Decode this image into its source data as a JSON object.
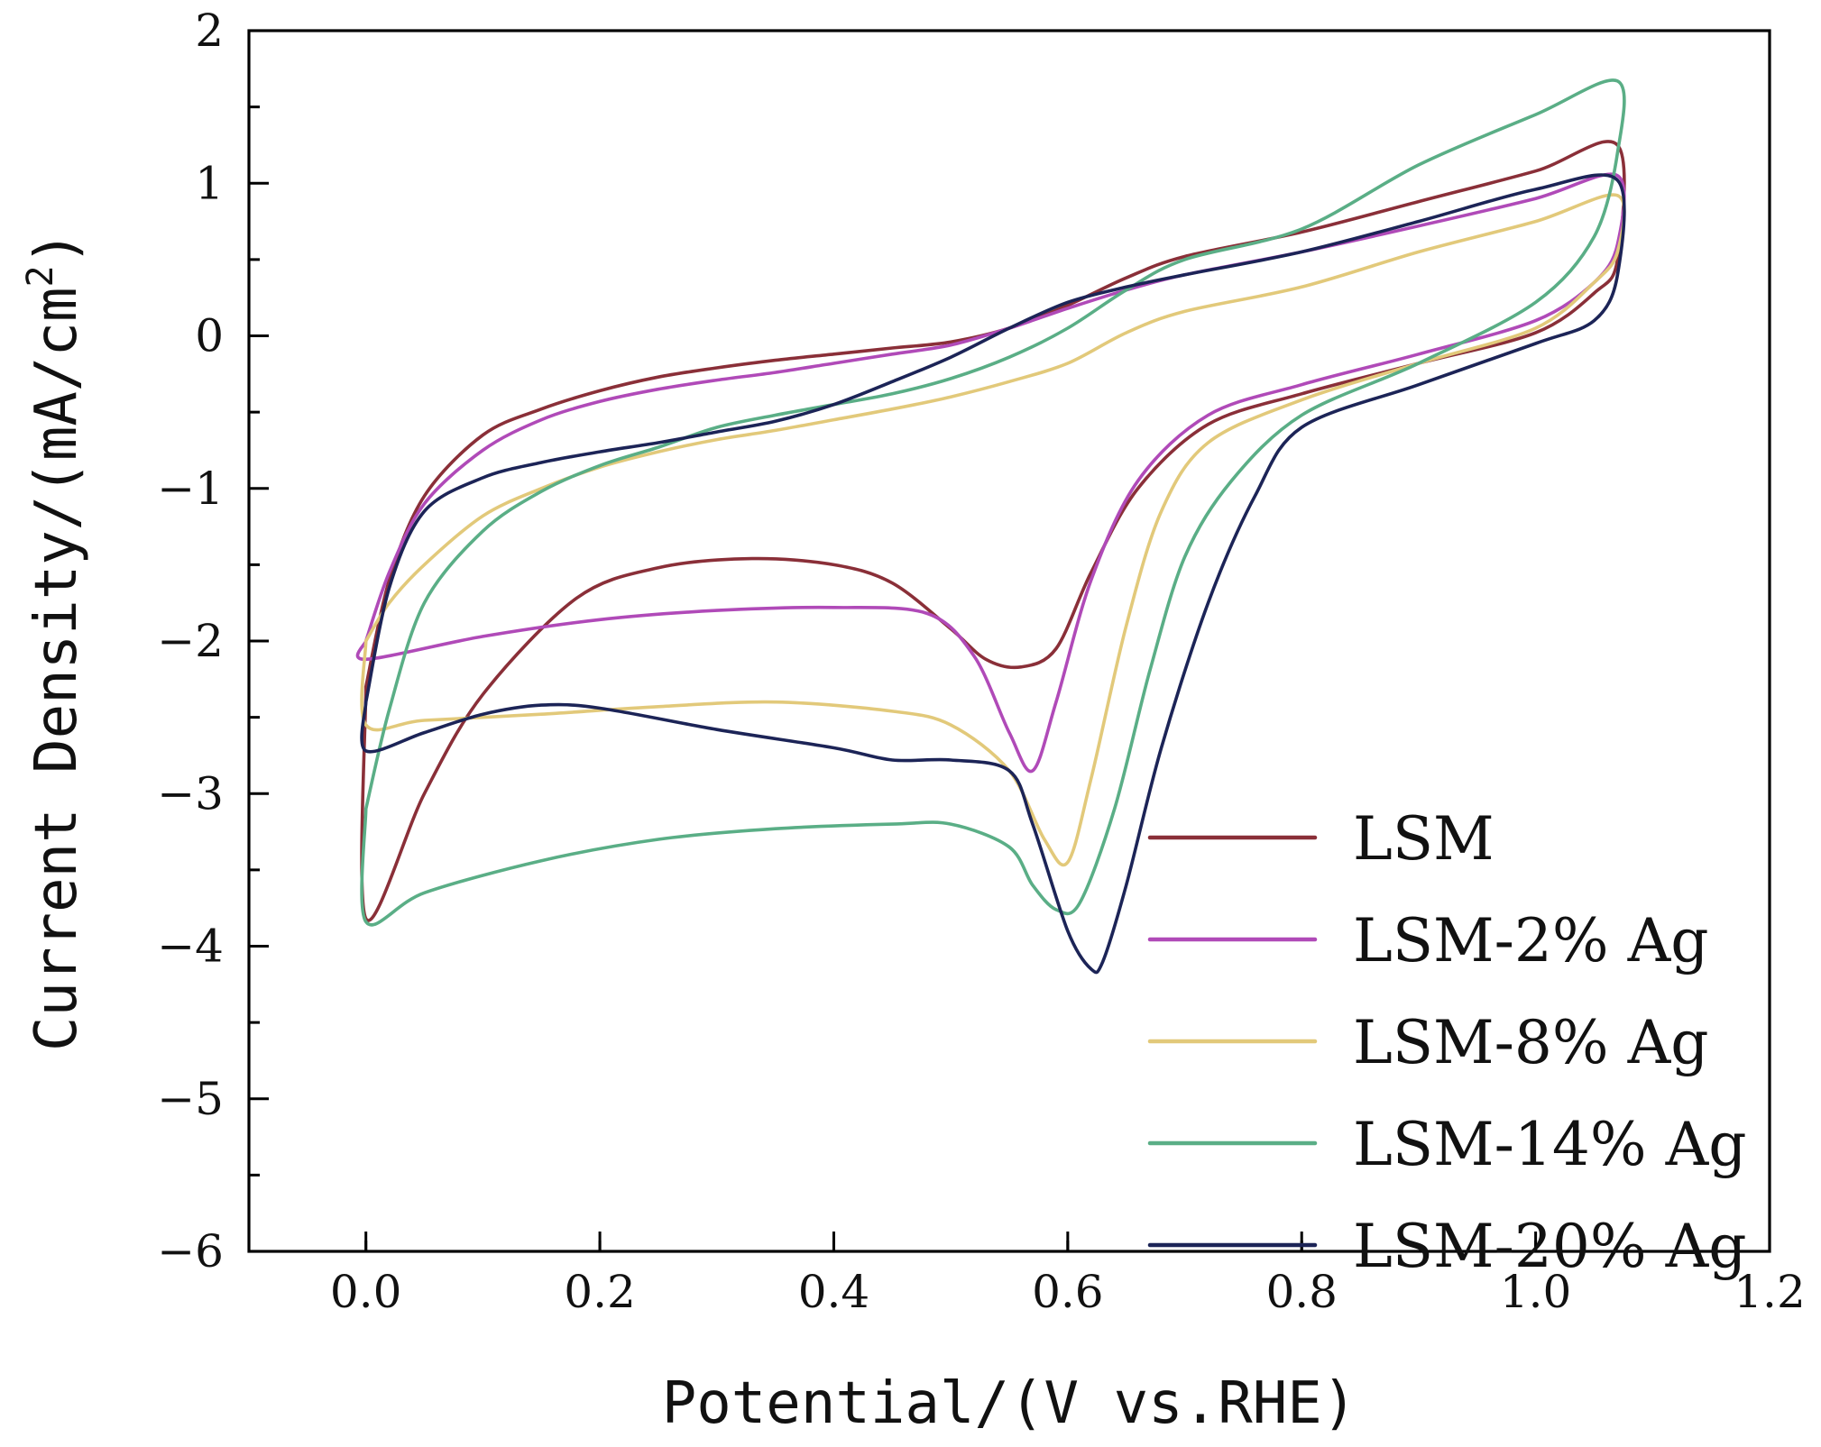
{
  "chart_data": {
    "type": "line",
    "title": "",
    "xlabel": "Potential/(V vs.RHE)",
    "ylabel_main": "Current Density/(mA/cm",
    "ylabel_sup": "2",
    "ylabel_close": ")",
    "xlim": [
      -0.1,
      1.2
    ],
    "ylim": [
      -6,
      2
    ],
    "x_ticks": [
      0.0,
      0.2,
      0.4,
      0.6,
      0.8,
      1.0,
      1.2
    ],
    "x_tick_labels": [
      "0.0",
      "0.2",
      "0.4",
      "0.6",
      "0.8",
      "1.0",
      "1.2"
    ],
    "y_ticks": [
      -6,
      -5,
      -4,
      -3,
      -2,
      -1,
      0,
      1,
      2
    ],
    "y_tick_labels": [
      "−6",
      "−5",
      "−4",
      "−3",
      "−2",
      "−1",
      "0",
      "1",
      "2"
    ],
    "grid": false,
    "legend_position": "bottom-right",
    "series": [
      {
        "name": "LSM",
        "color": "#8a2f38",
        "points": [
          [
            0.0,
            -2.3
          ],
          [
            0.02,
            -1.6
          ],
          [
            0.05,
            -1.05
          ],
          [
            0.1,
            -0.65
          ],
          [
            0.15,
            -0.48
          ],
          [
            0.2,
            -0.36
          ],
          [
            0.25,
            -0.27
          ],
          [
            0.3,
            -0.21
          ],
          [
            0.35,
            -0.16
          ],
          [
            0.4,
            -0.12
          ],
          [
            0.45,
            -0.08
          ],
          [
            0.5,
            -0.04
          ],
          [
            0.55,
            0.05
          ],
          [
            0.6,
            0.2
          ],
          [
            0.65,
            0.38
          ],
          [
            0.7,
            0.52
          ],
          [
            0.8,
            0.68
          ],
          [
            0.9,
            0.88
          ],
          [
            1.0,
            1.08
          ],
          [
            1.07,
            1.25
          ],
          [
            1.07,
            0.5
          ],
          [
            1.05,
            0.28
          ],
          [
            1.0,
            0.02
          ],
          [
            0.9,
            -0.18
          ],
          [
            0.8,
            -0.38
          ],
          [
            0.72,
            -0.58
          ],
          [
            0.66,
            -1.0
          ],
          [
            0.62,
            -1.55
          ],
          [
            0.59,
            -2.05
          ],
          [
            0.56,
            -2.17
          ],
          [
            0.53,
            -2.12
          ],
          [
            0.5,
            -1.92
          ],
          [
            0.45,
            -1.62
          ],
          [
            0.4,
            -1.5
          ],
          [
            0.33,
            -1.46
          ],
          [
            0.25,
            -1.52
          ],
          [
            0.18,
            -1.72
          ],
          [
            0.1,
            -2.35
          ],
          [
            0.05,
            -3.0
          ],
          [
            0.0,
            -3.82
          ],
          [
            0.0,
            -2.3
          ]
        ]
      },
      {
        "name": "LSM-2% Ag",
        "color": "#b04ab8",
        "points": [
          [
            0.0,
            -2.0
          ],
          [
            0.02,
            -1.55
          ],
          [
            0.05,
            -1.1
          ],
          [
            0.1,
            -0.75
          ],
          [
            0.15,
            -0.55
          ],
          [
            0.2,
            -0.43
          ],
          [
            0.25,
            -0.35
          ],
          [
            0.3,
            -0.29
          ],
          [
            0.35,
            -0.24
          ],
          [
            0.4,
            -0.18
          ],
          [
            0.45,
            -0.12
          ],
          [
            0.5,
            -0.06
          ],
          [
            0.55,
            0.05
          ],
          [
            0.6,
            0.18
          ],
          [
            0.65,
            0.3
          ],
          [
            0.7,
            0.4
          ],
          [
            0.8,
            0.55
          ],
          [
            0.9,
            0.72
          ],
          [
            1.0,
            0.9
          ],
          [
            1.07,
            1.05
          ],
          [
            1.07,
            0.6
          ],
          [
            1.05,
            0.35
          ],
          [
            1.0,
            0.1
          ],
          [
            0.9,
            -0.12
          ],
          [
            0.8,
            -0.32
          ],
          [
            0.72,
            -0.52
          ],
          [
            0.66,
            -0.95
          ],
          [
            0.62,
            -1.6
          ],
          [
            0.59,
            -2.4
          ],
          [
            0.57,
            -2.85
          ],
          [
            0.55,
            -2.6
          ],
          [
            0.52,
            -2.1
          ],
          [
            0.48,
            -1.82
          ],
          [
            0.4,
            -1.78
          ],
          [
            0.3,
            -1.8
          ],
          [
            0.2,
            -1.86
          ],
          [
            0.1,
            -1.97
          ],
          [
            0.0,
            -2.12
          ],
          [
            0.0,
            -2.0
          ]
        ]
      },
      {
        "name": "LSM-8% Ag",
        "color": "#e2c97a",
        "points": [
          [
            0.0,
            -2.0
          ],
          [
            0.02,
            -1.75
          ],
          [
            0.05,
            -1.5
          ],
          [
            0.1,
            -1.18
          ],
          [
            0.15,
            -1.0
          ],
          [
            0.2,
            -0.86
          ],
          [
            0.25,
            -0.76
          ],
          [
            0.3,
            -0.68
          ],
          [
            0.35,
            -0.62
          ],
          [
            0.4,
            -0.55
          ],
          [
            0.45,
            -0.48
          ],
          [
            0.5,
            -0.4
          ],
          [
            0.55,
            -0.3
          ],
          [
            0.6,
            -0.18
          ],
          [
            0.65,
            0.02
          ],
          [
            0.7,
            0.16
          ],
          [
            0.8,
            0.32
          ],
          [
            0.9,
            0.55
          ],
          [
            1.0,
            0.75
          ],
          [
            1.07,
            0.92
          ],
          [
            1.07,
            0.55
          ],
          [
            1.05,
            0.35
          ],
          [
            1.0,
            0.05
          ],
          [
            0.9,
            -0.18
          ],
          [
            0.8,
            -0.42
          ],
          [
            0.72,
            -0.7
          ],
          [
            0.68,
            -1.15
          ],
          [
            0.65,
            -1.9
          ],
          [
            0.62,
            -2.9
          ],
          [
            0.6,
            -3.45
          ],
          [
            0.58,
            -3.3
          ],
          [
            0.55,
            -2.85
          ],
          [
            0.5,
            -2.55
          ],
          [
            0.45,
            -2.46
          ],
          [
            0.35,
            -2.4
          ],
          [
            0.25,
            -2.43
          ],
          [
            0.15,
            -2.48
          ],
          [
            0.05,
            -2.52
          ],
          [
            0.0,
            -2.55
          ],
          [
            0.0,
            -2.0
          ]
        ]
      },
      {
        "name": "LSM-14% Ag",
        "color": "#5aae86",
        "points": [
          [
            0.0,
            -3.1
          ],
          [
            0.02,
            -2.45
          ],
          [
            0.05,
            -1.75
          ],
          [
            0.1,
            -1.28
          ],
          [
            0.15,
            -1.02
          ],
          [
            0.2,
            -0.85
          ],
          [
            0.25,
            -0.73
          ],
          [
            0.3,
            -0.6
          ],
          [
            0.35,
            -0.52
          ],
          [
            0.4,
            -0.45
          ],
          [
            0.45,
            -0.38
          ],
          [
            0.5,
            -0.28
          ],
          [
            0.55,
            -0.14
          ],
          [
            0.6,
            0.05
          ],
          [
            0.65,
            0.3
          ],
          [
            0.7,
            0.5
          ],
          [
            0.8,
            0.7
          ],
          [
            0.9,
            1.12
          ],
          [
            1.0,
            1.45
          ],
          [
            1.07,
            1.67
          ],
          [
            1.07,
            1.2
          ],
          [
            1.05,
            0.65
          ],
          [
            1.0,
            0.22
          ],
          [
            0.9,
            -0.18
          ],
          [
            0.8,
            -0.52
          ],
          [
            0.74,
            -0.95
          ],
          [
            0.7,
            -1.45
          ],
          [
            0.67,
            -2.2
          ],
          [
            0.64,
            -3.1
          ],
          [
            0.61,
            -3.72
          ],
          [
            0.59,
            -3.76
          ],
          [
            0.57,
            -3.6
          ],
          [
            0.55,
            -3.35
          ],
          [
            0.5,
            -3.2
          ],
          [
            0.45,
            -3.2
          ],
          [
            0.35,
            -3.23
          ],
          [
            0.25,
            -3.3
          ],
          [
            0.15,
            -3.44
          ],
          [
            0.05,
            -3.65
          ],
          [
            0.0,
            -3.84
          ],
          [
            0.0,
            -3.1
          ]
        ]
      },
      {
        "name": "LSM-20% Ag",
        "color": "#1c2457",
        "points": [
          [
            0.0,
            -2.4
          ],
          [
            0.02,
            -1.65
          ],
          [
            0.05,
            -1.15
          ],
          [
            0.1,
            -0.93
          ],
          [
            0.15,
            -0.83
          ],
          [
            0.2,
            -0.76
          ],
          [
            0.25,
            -0.7
          ],
          [
            0.3,
            -0.63
          ],
          [
            0.35,
            -0.56
          ],
          [
            0.4,
            -0.45
          ],
          [
            0.45,
            -0.3
          ],
          [
            0.5,
            -0.14
          ],
          [
            0.55,
            0.05
          ],
          [
            0.6,
            0.22
          ],
          [
            0.65,
            0.32
          ],
          [
            0.7,
            0.4
          ],
          [
            0.8,
            0.55
          ],
          [
            0.9,
            0.75
          ],
          [
            1.0,
            0.96
          ],
          [
            1.07,
            1.02
          ],
          [
            1.07,
            0.4
          ],
          [
            1.05,
            0.1
          ],
          [
            1.0,
            -0.05
          ],
          [
            0.9,
            -0.32
          ],
          [
            0.8,
            -0.6
          ],
          [
            0.76,
            -1.05
          ],
          [
            0.72,
            -1.75
          ],
          [
            0.68,
            -2.7
          ],
          [
            0.65,
            -3.6
          ],
          [
            0.63,
            -4.1
          ],
          [
            0.62,
            -4.15
          ],
          [
            0.6,
            -3.9
          ],
          [
            0.57,
            -3.2
          ],
          [
            0.55,
            -2.85
          ],
          [
            0.5,
            -2.78
          ],
          [
            0.45,
            -2.78
          ],
          [
            0.4,
            -2.7
          ],
          [
            0.3,
            -2.58
          ],
          [
            0.2,
            -2.44
          ],
          [
            0.15,
            -2.42
          ],
          [
            0.1,
            -2.48
          ],
          [
            0.05,
            -2.6
          ],
          [
            0.0,
            -2.72
          ],
          [
            0.0,
            -2.4
          ]
        ]
      }
    ]
  }
}
